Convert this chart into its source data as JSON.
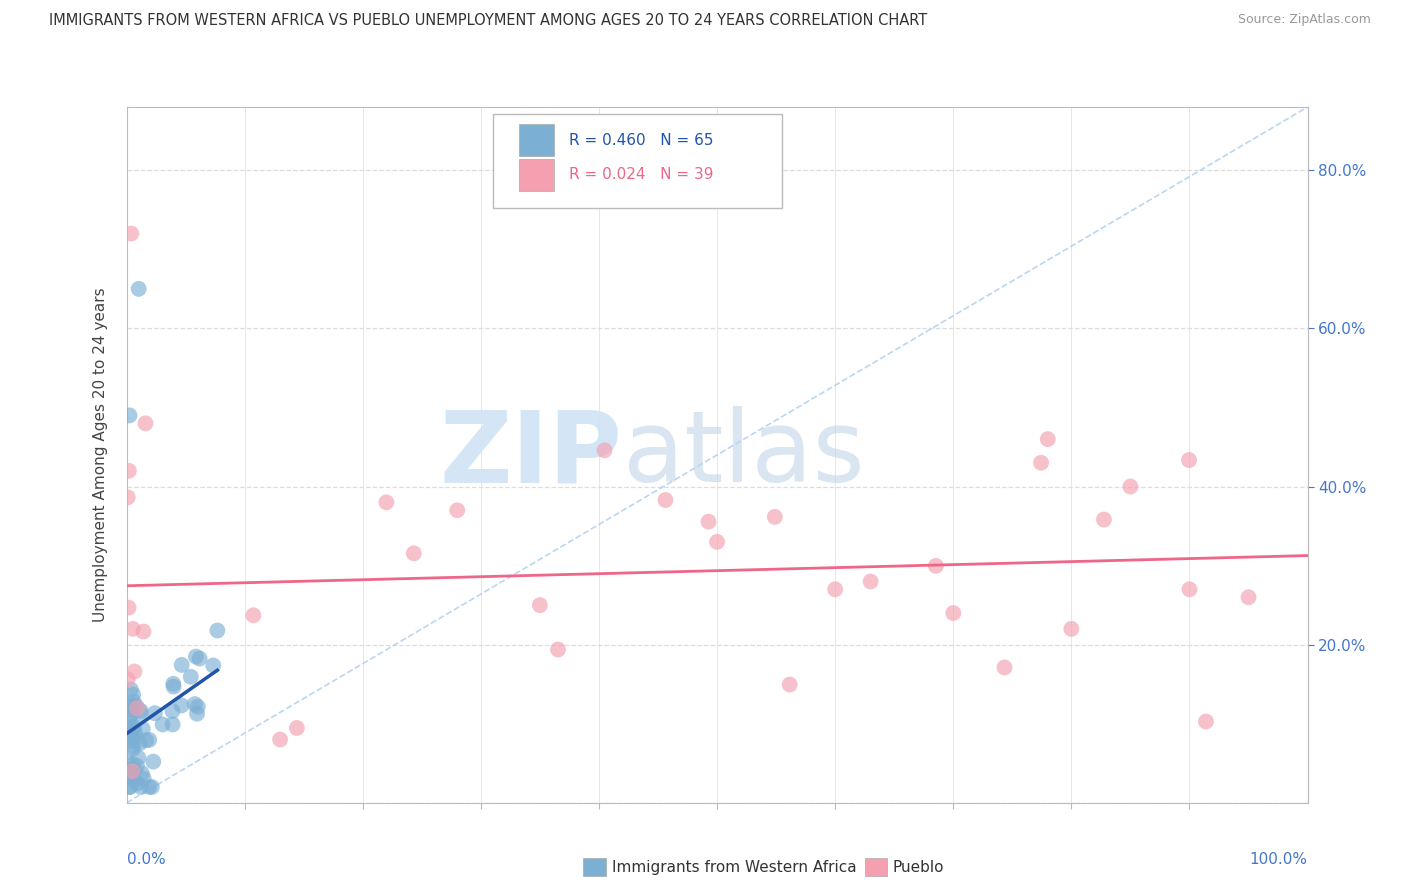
{
  "title": "IMMIGRANTS FROM WESTERN AFRICA VS PUEBLO UNEMPLOYMENT AMONG AGES 20 TO 24 YEARS CORRELATION CHART",
  "source": "Source: ZipAtlas.com",
  "ylabel": "Unemployment Among Ages 20 to 24 years",
  "legend1_label": "Immigrants from Western Africa",
  "legend2_label": "Pueblo",
  "R_blue": 0.46,
  "N_blue": 65,
  "R_pink": 0.024,
  "N_pink": 39,
  "blue_color": "#7BAFD4",
  "pink_color": "#F4A0B0",
  "blue_line_color": "#2255AA",
  "pink_line_color": "#EE6688",
  "ref_line_color": "#AACCEE",
  "tick_color": "#4477CC",
  "xmin": 0.0,
  "xmax": 1.0,
  "ymin": 0.0,
  "ymax": 0.88,
  "grid_color": "#DDDDDD",
  "bg_color": "#FFFFFF",
  "axis_color": "#BBBBBB",
  "watermark_zip_color": "#D8E8F8",
  "watermark_atlas_color": "#C8D8E8"
}
